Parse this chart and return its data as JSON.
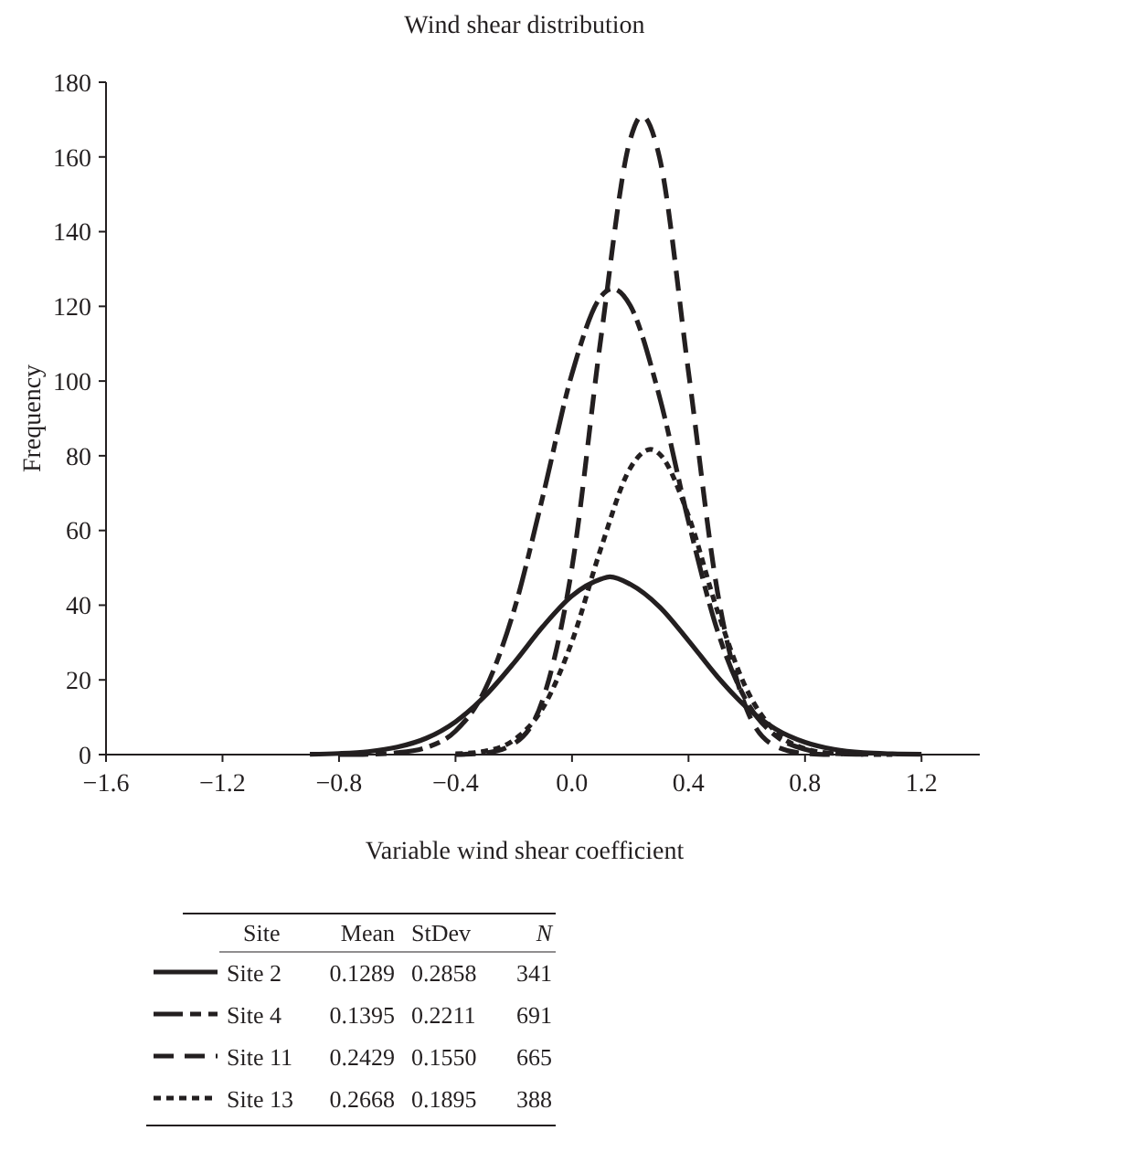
{
  "chart_data": {
    "type": "line",
    "title": "Wind shear distribution",
    "xlabel": "Variable wind shear coefficient",
    "ylabel": "Frequency",
    "xlim": [
      -1.6,
      1.4
    ],
    "xticks": [
      {
        "value": -1.6,
        "label": "−1.6"
      },
      {
        "value": -1.2,
        "label": "−1.2"
      },
      {
        "value": -0.8,
        "label": "−0.8"
      },
      {
        "value": -0.4,
        "label": "−0.4"
      },
      {
        "value": 0,
        "label": "0.0"
      },
      0.4,
      0.8,
      1.2
    ],
    "ylim": [
      0,
      180
    ],
    "yticks": [
      0,
      20,
      40,
      60,
      80,
      100,
      120,
      140,
      160,
      180
    ],
    "grid": false,
    "marker": "none",
    "legend": "bottom",
    "legend_title": "Site",
    "annotations": [
      "Mean",
      "StDev",
      "N",
      "0.1289",
      "0.2858",
      "341",
      "0.1395",
      "0.2211",
      "691",
      "0.2429",
      "0.1550",
      "665",
      "0.2668",
      "0.1895",
      "388"
    ],
    "series": [
      {
        "name": "Site 2",
        "color": "#231f20",
        "line_style": "solid",
        "x": [
          -0.9,
          -0.8,
          -0.7,
          -0.6,
          -0.5,
          -0.4,
          -0.3,
          -0.2,
          -0.1,
          0,
          0.1,
          0.13,
          0.2,
          0.3,
          0.4,
          0.5,
          0.6,
          0.7,
          0.8,
          0.9,
          1.0,
          1.1,
          1.2
        ],
        "values": [
          0.1,
          0.3,
          0.8,
          2,
          4.4,
          8.8,
          15.6,
          24.5,
          34.3,
          42.5,
          47,
          47.6,
          45.6,
          39.6,
          30.5,
          20.8,
          12.6,
          6.8,
          3.3,
          1.4,
          0.5,
          0.2,
          0.1
        ]
      },
      {
        "name": "Site 4",
        "color": "#231f20",
        "line_style": "dashdot",
        "x": [
          -0.8,
          -0.7,
          -0.6,
          -0.5,
          -0.4,
          -0.3,
          -0.2,
          -0.1,
          0,
          0.1,
          0.14,
          0.2,
          0.3,
          0.4,
          0.5,
          0.6,
          0.7,
          0.8,
          0.9,
          1.0
        ],
        "values": [
          0,
          0.1,
          0.5,
          1.9,
          6.3,
          17.2,
          38.4,
          69.2,
          102,
          122.7,
          124.7,
          120.2,
          95.9,
          62.4,
          33,
          14.2,
          5,
          1.4,
          0.3,
          0.1
        ]
      },
      {
        "name": "Site 11",
        "color": "#231f20",
        "line_style": "dashed",
        "x": [
          -0.4,
          -0.3,
          -0.2,
          -0.1,
          0,
          0.1,
          0.2,
          0.24,
          0.3,
          0.4,
          0.5,
          0.6,
          0.7,
          0.8,
          0.9
        ],
        "values": [
          0,
          0.4,
          2.9,
          14.8,
          50.1,
          112,
          164.7,
          171,
          160,
          102.4,
          43.3,
          12.1,
          2.2,
          0.3,
          0
        ]
      },
      {
        "name": "Site 13",
        "color": "#231f20",
        "line_style": "dotted",
        "x": [
          -0.4,
          -0.3,
          -0.2,
          -0.1,
          0,
          0.1,
          0.2,
          0.27,
          0.3,
          0.4,
          0.5,
          0.6,
          0.7,
          0.8,
          0.9,
          1.0,
          1.1
        ],
        "values": [
          0.2,
          0.9,
          3.9,
          12.5,
          30.3,
          55.4,
          76.7,
          81.7,
          80.5,
          63.9,
          38.3,
          17.4,
          6,
          1.6,
          0.3,
          0.1,
          0
        ]
      }
    ]
  }
}
